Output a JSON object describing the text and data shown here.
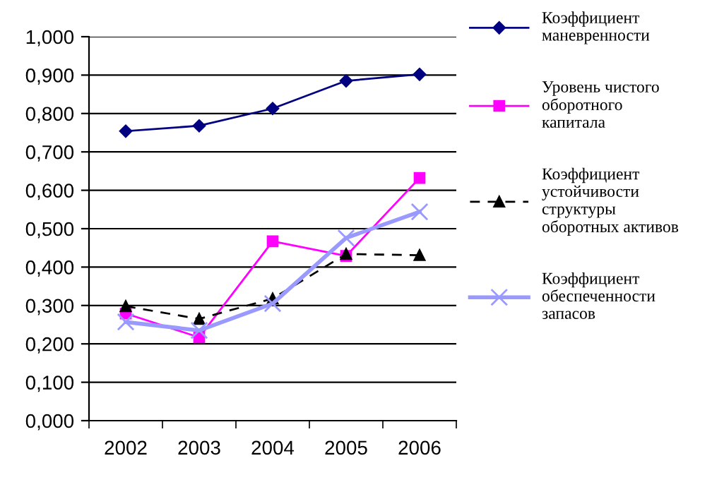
{
  "chart_data": {
    "type": "line",
    "categories": [
      "2002",
      "2003",
      "2004",
      "2005",
      "2006"
    ],
    "series": [
      {
        "name": "Коэффициент\nманевренности",
        "color": "#000080",
        "marker": "diamond",
        "line_style": "solid",
        "values": [
          0.754,
          0.768,
          0.813,
          0.885,
          0.902
        ]
      },
      {
        "name": "Уровень чистого\nоборотного\nкапитала",
        "color": "#ff00ff",
        "marker": "square",
        "line_style": "solid",
        "values": [
          0.279,
          0.217,
          0.467,
          0.429,
          0.632
        ]
      },
      {
        "name": "Коэффициент\nустойчивости\nструктуры\nоборотных активов",
        "color": "#000000",
        "marker": "triangle",
        "line_style": "dashed",
        "values": [
          0.298,
          0.265,
          0.318,
          0.434,
          0.431
        ]
      },
      {
        "name": "Коэффициент\nобеспеченности\nзапасов",
        "color": "#9999ff",
        "marker": "cross",
        "line_style": "solid",
        "values": [
          0.257,
          0.235,
          0.305,
          0.476,
          0.544
        ]
      }
    ],
    "ylim": [
      0,
      1
    ],
    "yticks": [
      {
        "value": 0,
        "label": "0,000"
      },
      {
        "value": 0.1,
        "label": "0,100"
      },
      {
        "value": 0.2,
        "label": "0,200"
      },
      {
        "value": 0.3,
        "label": "0,300"
      },
      {
        "value": 0.4,
        "label": "0,400"
      },
      {
        "value": 0.5,
        "label": "0,500"
      },
      {
        "value": 0.6,
        "label": "0,600"
      },
      {
        "value": 0.7,
        "label": "0,700"
      },
      {
        "value": 0.8,
        "label": "0,800"
      },
      {
        "value": 0.9,
        "label": "0,900"
      },
      {
        "value": 1,
        "label": "1,000"
      }
    ],
    "grid": "y",
    "legend": "right"
  }
}
